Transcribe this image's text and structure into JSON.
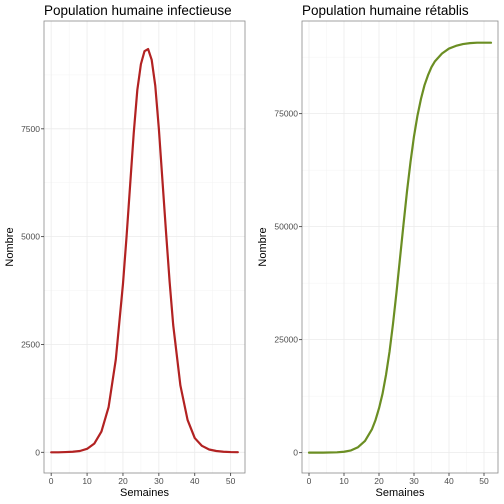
{
  "chart_data": [
    {
      "type": "line",
      "title": "Population humaine infectieuse",
      "xlabel": "Semaines",
      "ylabel": "Nombre",
      "xlim": [
        -2,
        54
      ],
      "ylim": [
        -480,
        10000
      ],
      "xticks": [
        0,
        10,
        20,
        30,
        40,
        50
      ],
      "yticks": [
        0,
        2500,
        5000,
        7500
      ],
      "ytick_labels": [
        "0",
        "2500",
        "5000",
        "7500"
      ],
      "grid": true,
      "color": "#b22222",
      "series": [
        {
          "x": [
            0,
            2,
            4,
            6,
            8,
            10,
            12,
            14,
            16,
            18,
            20,
            21,
            22,
            23,
            24,
            25,
            26,
            27,
            28,
            29,
            30,
            31,
            32,
            33,
            34,
            36,
            38,
            40,
            42,
            44,
            46,
            48,
            50,
            52
          ],
          "values": [
            0,
            0,
            5,
            12,
            30,
            80,
            200,
            480,
            1050,
            2150,
            3900,
            5000,
            6200,
            7400,
            8400,
            9000,
            9300,
            9350,
            9100,
            8500,
            7500,
            6300,
            5100,
            3950,
            2950,
            1550,
            750,
            330,
            150,
            65,
            30,
            12,
            5,
            2
          ]
        }
      ]
    },
    {
      "type": "line",
      "title": "Population humaine rétablis",
      "xlabel": "Semaines",
      "ylabel": "Nombre",
      "xlim": [
        -2,
        54
      ],
      "ylim": [
        -4500,
        95500
      ],
      "xticks": [
        0,
        10,
        20,
        30,
        40,
        50
      ],
      "yticks": [
        0,
        25000,
        50000,
        75000
      ],
      "ytick_labels": [
        "0",
        "25000",
        "50000",
        "75000"
      ],
      "grid": true,
      "color": "#6b8e23",
      "series": [
        {
          "x": [
            0,
            4,
            8,
            10,
            12,
            14,
            16,
            18,
            19,
            20,
            21,
            22,
            23,
            24,
            25,
            26,
            27,
            28,
            29,
            30,
            31,
            32,
            33,
            34,
            35,
            36,
            38,
            40,
            42,
            44,
            46,
            48,
            50,
            52
          ],
          "values": [
            0,
            10,
            80,
            200,
            500,
            1200,
            2600,
            5200,
            7200,
            9800,
            13000,
            17200,
            22300,
            28500,
            35500,
            43000,
            50500,
            57800,
            64300,
            70000,
            74600,
            78300,
            81300,
            83500,
            85300,
            86600,
            88300,
            89400,
            90000,
            90400,
            90600,
            90700,
            90700,
            90700
          ]
        }
      ]
    }
  ]
}
